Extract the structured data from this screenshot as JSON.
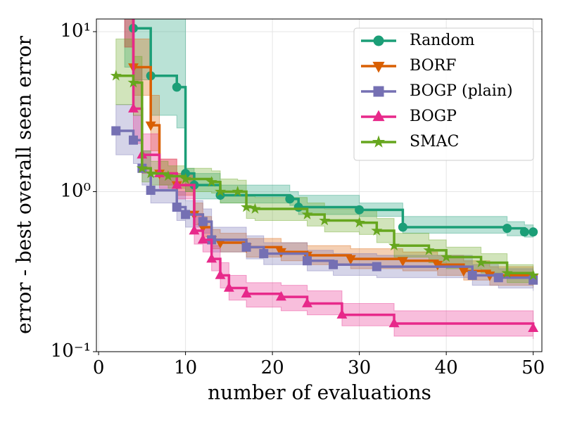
{
  "chart_data": {
    "type": "step-line",
    "xlabel": "number of evaluations",
    "ylabel": "error - best overall seen error",
    "xlim": [
      -0.25,
      51
    ],
    "xticks": [
      0,
      10,
      20,
      30,
      40,
      50
    ],
    "ylim": [
      0.1,
      12
    ],
    "yscale": "log",
    "yticks": [
      {
        "value": 0.1,
        "label": "10⁻¹"
      },
      {
        "value": 1,
        "label": "10⁰"
      },
      {
        "value": 10,
        "label": "10¹"
      }
    ],
    "grid": true,
    "legend": "upper right",
    "series": [
      {
        "name": "Random",
        "color": "#1b9e77",
        "marker": "circle",
        "x": [
          3,
          4,
          6,
          9,
          10,
          11,
          14,
          22,
          23,
          30,
          35,
          47,
          49,
          50
        ],
        "values": [
          14,
          10.5,
          5.3,
          4.5,
          1.3,
          1.1,
          0.95,
          0.9,
          0.8,
          0.77,
          0.6,
          0.59,
          0.56,
          0.56
        ],
        "upper": [
          14,
          14,
          14,
          14,
          1.4,
          1.3,
          1.1,
          1.0,
          0.95,
          0.85,
          0.7,
          0.65,
          0.62,
          0.62
        ],
        "lower": [
          6,
          5,
          3,
          2.5,
          1.0,
          0.9,
          0.85,
          0.82,
          0.72,
          0.7,
          0.55,
          0.53,
          0.52,
          0.52
        ]
      },
      {
        "name": "BORF",
        "color": "#d95f02",
        "marker": "triangle-down",
        "x": [
          3,
          4,
          6,
          7,
          9,
          11,
          12,
          13,
          14,
          17,
          21,
          24,
          29,
          35,
          39,
          42,
          45,
          50
        ],
        "values": [
          14,
          6,
          2.6,
          1.3,
          1.1,
          0.72,
          0.6,
          0.5,
          0.48,
          0.45,
          0.42,
          0.4,
          0.38,
          0.37,
          0.35,
          0.32,
          0.3,
          0.29
        ],
        "upper": [
          14,
          9,
          4,
          1.6,
          1.3,
          0.85,
          0.7,
          0.58,
          0.55,
          0.51,
          0.48,
          0.46,
          0.44,
          0.42,
          0.4,
          0.37,
          0.34,
          0.33
        ],
        "lower": [
          8,
          4,
          1.8,
          1.1,
          0.95,
          0.62,
          0.52,
          0.44,
          0.42,
          0.39,
          0.37,
          0.35,
          0.33,
          0.32,
          0.3,
          0.28,
          0.26,
          0.25
        ]
      },
      {
        "name": "BOGP (plain)",
        "color": "#7570b3",
        "marker": "square",
        "x": [
          2,
          4,
          5,
          6,
          9,
          10,
          12,
          13,
          17,
          19,
          24,
          27,
          32,
          43,
          46,
          50
        ],
        "values": [
          2.4,
          2.1,
          1.4,
          1.02,
          0.8,
          0.72,
          0.65,
          0.5,
          0.45,
          0.41,
          0.37,
          0.35,
          0.34,
          0.3,
          0.29,
          0.28
        ],
        "upper": [
          3.5,
          3,
          1.8,
          1.25,
          1.0,
          0.88,
          0.78,
          0.6,
          0.53,
          0.48,
          0.43,
          0.41,
          0.4,
          0.35,
          0.33,
          0.32
        ],
        "lower": [
          1.7,
          1.5,
          1.1,
          0.85,
          0.66,
          0.6,
          0.55,
          0.42,
          0.38,
          0.35,
          0.32,
          0.3,
          0.29,
          0.26,
          0.25,
          0.24
        ]
      },
      {
        "name": "BOGP",
        "color": "#e7298a",
        "marker": "triangle-up",
        "x": [
          3,
          4,
          5,
          7,
          9,
          11,
          12,
          13,
          14,
          15,
          17,
          21,
          24,
          28,
          34,
          50
        ],
        "values": [
          14,
          3.3,
          1.7,
          1.3,
          1.1,
          0.57,
          0.5,
          0.38,
          0.3,
          0.25,
          0.23,
          0.22,
          0.2,
          0.17,
          0.15,
          0.14
        ],
        "upper": [
          14,
          6,
          2.3,
          1.6,
          1.3,
          0.7,
          0.6,
          0.46,
          0.36,
          0.3,
          0.27,
          0.26,
          0.24,
          0.2,
          0.18,
          0.17
        ],
        "lower": [
          8,
          2,
          1.3,
          1.05,
          0.9,
          0.47,
          0.42,
          0.32,
          0.25,
          0.21,
          0.19,
          0.18,
          0.17,
          0.145,
          0.125,
          0.12
        ]
      },
      {
        "name": "SMAC",
        "color": "#66a61e",
        "marker": "star",
        "x": [
          2,
          4,
          5,
          6,
          8,
          10,
          13,
          14,
          16,
          17,
          18,
          24,
          26,
          30,
          32,
          34,
          38,
          40,
          44,
          47,
          50
        ],
        "values": [
          5.3,
          4.8,
          1.4,
          1.3,
          1.25,
          1.2,
          1.15,
          1.0,
          1.0,
          0.8,
          0.78,
          0.72,
          0.66,
          0.64,
          0.57,
          0.46,
          0.43,
          0.39,
          0.36,
          0.31,
          0.3
        ],
        "upper": [
          9,
          7,
          1.8,
          1.55,
          1.45,
          1.4,
          1.35,
          1.2,
          1.18,
          0.95,
          0.92,
          0.85,
          0.78,
          0.76,
          0.68,
          0.55,
          0.5,
          0.45,
          0.41,
          0.35,
          0.34
        ],
        "lower": [
          3.5,
          3,
          1.15,
          1.1,
          1.05,
          1.0,
          0.98,
          0.85,
          0.85,
          0.68,
          0.66,
          0.61,
          0.56,
          0.54,
          0.48,
          0.39,
          0.36,
          0.33,
          0.31,
          0.27,
          0.26
        ]
      }
    ]
  }
}
